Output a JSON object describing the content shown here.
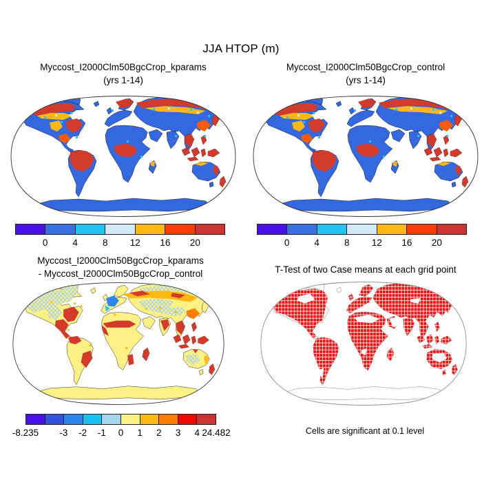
{
  "figure": {
    "main_title": "JJA HTOP (m)",
    "caption": "Cells are significant at 0.1 level"
  },
  "panels": {
    "top_left": {
      "title_line1": "Myccost_I2000Clm50BgcCrop_kparams",
      "title_line2": "(yrs 1-14)"
    },
    "top_right": {
      "title_line1": "Myccost_I2000Clm50BgcCrop_control",
      "title_line2": "(yrs 1-14)"
    },
    "bottom_left": {
      "title_line1": "Myccost_I2000Clm50BgcCrop_kparams",
      "title_line2": "- Myccost_I2000Clm50BgcCrop_control"
    },
    "bottom_right": {
      "title_line1": "T-Test of two Case means at each grid point"
    }
  },
  "chart_data": [
    {
      "type": "heatmap",
      "map": "global",
      "projection": "robinson",
      "title": "Myccost_I2000Clm50BgcCrop_kparams",
      "subtitle": "(yrs 1-14)",
      "variable": "HTOP",
      "season": "JJA",
      "units": "m",
      "legend_position": "bottom",
      "colorbar": {
        "colors": [
          "#4a10e8",
          "#3a6fe0",
          "#22c4f2",
          "#d2e9f5",
          "#fdb813",
          "#f93b05",
          "#cc3333"
        ],
        "tick_labels": [
          "0",
          "4",
          "8",
          "12",
          "16",
          "20"
        ],
        "tick_positions": [
          0.1429,
          0.2857,
          0.4286,
          0.5714,
          0.7143,
          0.8571
        ]
      }
    },
    {
      "type": "heatmap",
      "map": "global",
      "projection": "robinson",
      "title": "Myccost_I2000Clm50BgcCrop_control",
      "subtitle": "(yrs 1-14)",
      "variable": "HTOP",
      "season": "JJA",
      "units": "m",
      "legend_position": "bottom",
      "colorbar": {
        "colors": [
          "#4a10e8",
          "#3a6fe0",
          "#22c4f2",
          "#d2e9f5",
          "#fdb813",
          "#f93b05",
          "#cc3333"
        ],
        "tick_labels": [
          "0",
          "4",
          "8",
          "12",
          "16",
          "20"
        ],
        "tick_positions": [
          0.1429,
          0.2857,
          0.4286,
          0.5714,
          0.7143,
          0.8571
        ]
      }
    },
    {
      "type": "heatmap",
      "map": "global",
      "projection": "robinson",
      "title": "Myccost_I2000Clm50BgcCrop_kparams - Myccost_I2000Clm50BgcCrop_control",
      "variable": "HTOP difference",
      "season": "JJA",
      "units": "m",
      "min": -8.235,
      "max": 24.482,
      "legend_position": "bottom",
      "colorbar": {
        "colors": [
          "#4a10e8",
          "#3353dc",
          "#2e86ec",
          "#1ac1f0",
          "#a6d6ee",
          "#fdf185",
          "#fdb913",
          "#fd7d00",
          "#ee0a00",
          "#cc3333"
        ],
        "tick_labels": [
          "-8.235",
          "-3",
          "-2",
          "-1",
          "0",
          "1",
          "2",
          "3",
          "4",
          "24.482"
        ],
        "tick_positions": [
          0,
          0.2,
          0.3,
          0.4,
          0.5,
          0.6,
          0.7,
          0.8,
          0.9,
          1
        ]
      }
    },
    {
      "type": "heatmap",
      "map": "global",
      "projection": "robinson",
      "title": "T-Test of two Case means at each grid point",
      "note": "Cells are significant at 0.1 level",
      "significance_level": 0.1,
      "significant_color": "#e81515"
    }
  ],
  "colors": {
    "ocean": "#ffffff",
    "outline": "#333333",
    "coast": "#111111",
    "land_value": "#3368de",
    "red": "#d23b2b",
    "dark_red": "#cc3333",
    "amber": "#fdb813",
    "orange": "#fb5a07",
    "cyan": "#22c4f2",
    "pale_blue": "#d2e9f5",
    "diff_land": "#fdf185",
    "diff_mottle_blue": "#a9d3ec",
    "diff_blue": "#2e86ec",
    "diff_amber": "#fdb913",
    "diff_orange": "#fd7d00",
    "ttest_red": "#e81515",
    "ttest_outline": "#888888"
  }
}
